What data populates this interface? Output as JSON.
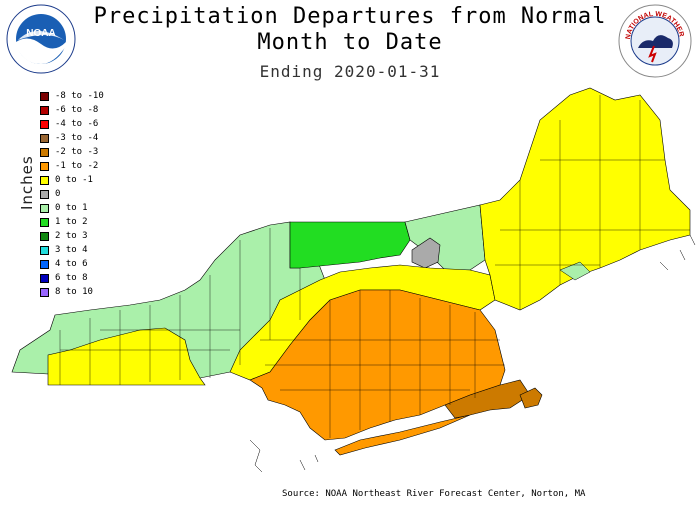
{
  "header": {
    "title": "Precipitation Departures from Normal",
    "subtitle": "Month to Date",
    "date_line": "Ending 2020-01-31"
  },
  "logos": {
    "noaa_text": "NOAA",
    "nws_text": "NATIONAL WEATHER SERVICE"
  },
  "legend": {
    "units_label": "Inches",
    "items": [
      {
        "label": "-8 to -10",
        "color": "#7a0000"
      },
      {
        "label": "-6 to -8",
        "color": "#b30000"
      },
      {
        "label": "-4 to -6",
        "color": "#ff0000"
      },
      {
        "label": "-3 to -4",
        "color": "#996633"
      },
      {
        "label": "-2 to -3",
        "color": "#cc7a00"
      },
      {
        "label": "-1 to -2",
        "color": "#ff9900"
      },
      {
        "label": "0 to -1",
        "color": "#ffff00"
      },
      {
        "label": "0",
        "color": "#aaaaaa"
      },
      {
        "label": "0 to 1",
        "color": "#aaf0aa"
      },
      {
        "label": "1 to 2",
        "color": "#22dd22"
      },
      {
        "label": "2 to 3",
        "color": "#118811"
      },
      {
        "label": "3 to 4",
        "color": "#22dddd"
      },
      {
        "label": "4 to 6",
        "color": "#0066ff"
      },
      {
        "label": "6 to 8",
        "color": "#0000bb"
      },
      {
        "label": "8 to 10",
        "color": "#9966ff"
      }
    ]
  },
  "source": "Source: NOAA Northeast River Forecast Center, Norton, MA"
}
